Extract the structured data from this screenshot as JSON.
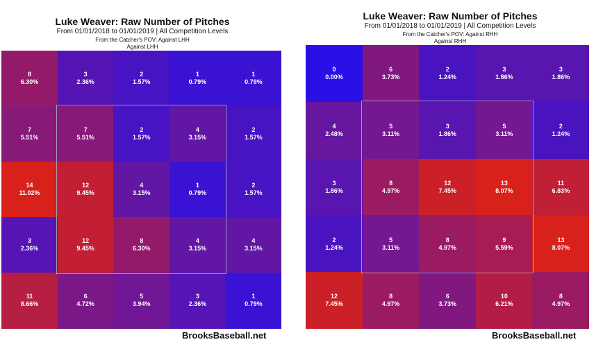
{
  "chart_data": [
    {
      "type": "heatmap",
      "title": "Luke Weaver: Raw Number of Pitches",
      "subtitle": "From 01/01/2018 to 01/01/2019 | All Competition Levels",
      "note_pov": "From the Catcher's POV:  Against LHH",
      "note_hand": "Against LHH",
      "credit": "BrooksBaseball.net",
      "rows": [
        [
          {
            "count": "8",
            "pct": "6.30%"
          },
          {
            "count": "3",
            "pct": "2.36%"
          },
          {
            "count": "2",
            "pct": "1.57%"
          },
          {
            "count": "1",
            "pct": "0.79%"
          },
          {
            "count": "1",
            "pct": "0.79%"
          }
        ],
        [
          {
            "count": "7",
            "pct": "5.51%"
          },
          {
            "count": "7",
            "pct": "5.51%"
          },
          {
            "count": "2",
            "pct": "1.57%"
          },
          {
            "count": "4",
            "pct": "3.15%"
          },
          {
            "count": "2",
            "pct": "1.57%"
          }
        ],
        [
          {
            "count": "14",
            "pct": "11.02%"
          },
          {
            "count": "12",
            "pct": "9.45%"
          },
          {
            "count": "4",
            "pct": "3.15%"
          },
          {
            "count": "1",
            "pct": "0.79%"
          },
          {
            "count": "2",
            "pct": "1.57%"
          }
        ],
        [
          {
            "count": "3",
            "pct": "2.36%"
          },
          {
            "count": "12",
            "pct": "9.45%"
          },
          {
            "count": "8",
            "pct": "6.30%"
          },
          {
            "count": "4",
            "pct": "3.15%"
          },
          {
            "count": "4",
            "pct": "3.15%"
          }
        ],
        [
          {
            "count": "11",
            "pct": "8.66%"
          },
          {
            "count": "6",
            "pct": "4.72%"
          },
          {
            "count": "5",
            "pct": "3.94%"
          },
          {
            "count": "3",
            "pct": "2.36%"
          },
          {
            "count": "1",
            "pct": "0.79%"
          }
        ]
      ],
      "color_low": "#2a10e6",
      "color_high": "#d8211a"
    },
    {
      "type": "heatmap",
      "title": "Luke Weaver: Raw Number of Pitches",
      "subtitle": "From 01/01/2018 to 01/01/2019 | All Competition Levels",
      "note_pov": "From the Catcher's POV:  Against RHH",
      "note_hand": "Against RHH",
      "credit": "BrooksBaseball.net",
      "rows": [
        [
          {
            "count": "0",
            "pct": "0.00%"
          },
          {
            "count": "6",
            "pct": "3.73%"
          },
          {
            "count": "2",
            "pct": "1.24%"
          },
          {
            "count": "3",
            "pct": "1.86%"
          },
          {
            "count": "3",
            "pct": "1.86%"
          }
        ],
        [
          {
            "count": "4",
            "pct": "2.48%"
          },
          {
            "count": "5",
            "pct": "3.11%"
          },
          {
            "count": "3",
            "pct": "1.86%"
          },
          {
            "count": "5",
            "pct": "3.11%"
          },
          {
            "count": "2",
            "pct": "1.24%"
          }
        ],
        [
          {
            "count": "3",
            "pct": "1.86%"
          },
          {
            "count": "8",
            "pct": "4.97%"
          },
          {
            "count": "12",
            "pct": "7.45%"
          },
          {
            "count": "13",
            "pct": "8.07%"
          },
          {
            "count": "11",
            "pct": "6.83%"
          }
        ],
        [
          {
            "count": "2",
            "pct": "1.24%"
          },
          {
            "count": "5",
            "pct": "3.11%"
          },
          {
            "count": "8",
            "pct": "4.97%"
          },
          {
            "count": "9",
            "pct": "5.59%"
          },
          {
            "count": "13",
            "pct": "8.07%"
          }
        ],
        [
          {
            "count": "12",
            "pct": "7.45%"
          },
          {
            "count": "8",
            "pct": "4.97%"
          },
          {
            "count": "6",
            "pct": "3.73%"
          },
          {
            "count": "10",
            "pct": "6.21%"
          },
          {
            "count": "8",
            "pct": "4.97%"
          }
        ]
      ],
      "color_low": "#2a10e6",
      "color_high": "#d8211a"
    }
  ]
}
